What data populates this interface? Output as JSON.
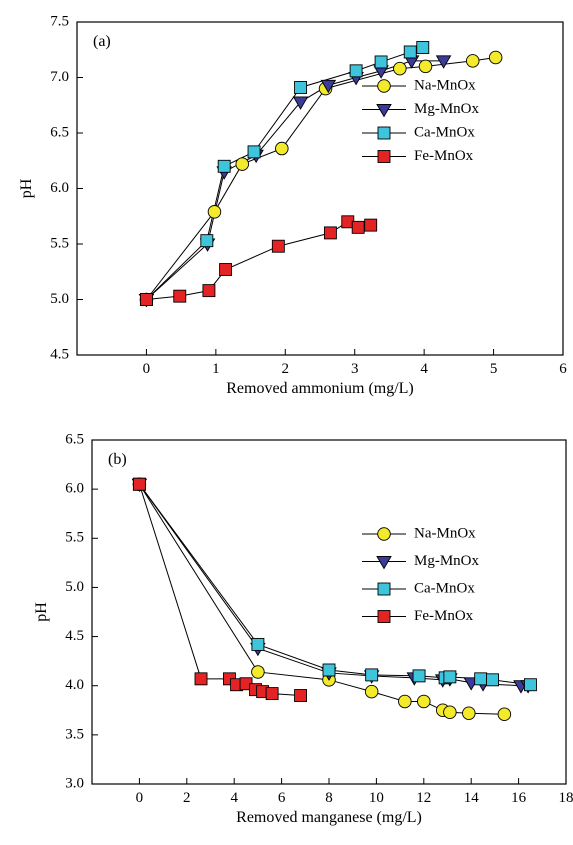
{
  "chart_data": [
    {
      "type": "scatter",
      "panel_label": "(a)",
      "xlabel": "Removed ammonium (mg/L)",
      "ylabel": "pH",
      "xlim": [
        -1,
        6
      ],
      "ylim": [
        4.5,
        7.5
      ],
      "xticks": [
        0,
        1,
        2,
        3,
        4,
        5,
        6
      ],
      "yticks": [
        4.5,
        5.0,
        5.5,
        6.0,
        6.5,
        7.0,
        7.5
      ],
      "grid": false,
      "legend_position": "right",
      "series": [
        {
          "name": "Na-MnOx",
          "marker": "circle",
          "color": "#f2ea2a",
          "x": [
            0,
            0.98,
            1.38,
            1.95,
            2.58,
            3.65,
            4.02,
            4.7,
            5.03
          ],
          "y": [
            5.0,
            5.79,
            6.22,
            6.36,
            6.9,
            7.08,
            7.1,
            7.15,
            7.18
          ]
        },
        {
          "name": "Mg-MnOx",
          "marker": "triangle-down",
          "color": "#3b3b9a",
          "x": [
            0,
            0.88,
            1.12,
            1.58,
            2.22,
            2.62,
            3.02,
            3.38,
            3.82,
            4.28
          ],
          "y": [
            5.0,
            5.5,
            6.15,
            6.3,
            6.78,
            6.93,
            7.0,
            7.06,
            7.15,
            7.15
          ]
        },
        {
          "name": "Ca-MnOx",
          "marker": "square",
          "color": "#3ec5dc",
          "x": [
            0,
            0.87,
            1.12,
            1.55,
            2.22,
            3.02,
            3.38,
            3.8,
            3.98
          ],
          "y": [
            5.0,
            5.53,
            6.2,
            6.33,
            6.91,
            7.06,
            7.14,
            7.23,
            7.27
          ]
        },
        {
          "name": "Fe-MnOx",
          "marker": "square",
          "color": "#e42424",
          "x": [
            0,
            0.48,
            0.9,
            1.14,
            1.9,
            2.65,
            2.9,
            3.05,
            3.23
          ],
          "y": [
            5.0,
            5.03,
            5.08,
            5.27,
            5.48,
            5.6,
            5.7,
            5.65,
            5.67
          ]
        }
      ]
    },
    {
      "type": "scatter",
      "panel_label": "(b)",
      "xlabel": "Removed manganese (mg/L)",
      "ylabel": "pH",
      "xlim": [
        -2,
        18
      ],
      "ylim": [
        3.0,
        6.5
      ],
      "xticks": [
        0,
        2,
        4,
        6,
        8,
        10,
        12,
        14,
        16,
        18
      ],
      "yticks": [
        3.0,
        3.5,
        4.0,
        4.5,
        5.0,
        5.5,
        6.0,
        6.5
      ],
      "grid": false,
      "legend_position": "right",
      "series": [
        {
          "name": "Na-MnOx",
          "marker": "circle",
          "color": "#f2ea2a",
          "x": [
            0,
            5.0,
            8.0,
            9.8,
            11.2,
            12.0,
            12.8,
            13.1,
            13.9,
            15.4
          ],
          "y": [
            6.05,
            4.14,
            4.06,
            3.94,
            3.84,
            3.84,
            3.75,
            3.73,
            3.72,
            3.71
          ]
        },
        {
          "name": "Mg-MnOx",
          "marker": "triangle-down",
          "color": "#3b3b9a",
          "x": [
            0,
            5.0,
            8.0,
            9.8,
            11.6,
            12.8,
            13.1,
            14.0,
            14.5,
            16.1,
            16.4
          ],
          "y": [
            6.05,
            4.38,
            4.13,
            4.1,
            4.08,
            4.06,
            4.07,
            4.03,
            4.02,
            4.0,
            4.0
          ]
        },
        {
          "name": "Ca-MnOx",
          "marker": "square",
          "color": "#3ec5dc",
          "x": [
            0,
            5.0,
            8.0,
            9.8,
            11.8,
            12.9,
            13.1,
            14.4,
            14.9,
            16.5
          ],
          "y": [
            6.05,
            4.42,
            4.16,
            4.11,
            4.1,
            4.08,
            4.09,
            4.07,
            4.06,
            4.01
          ]
        },
        {
          "name": "Fe-MnOx",
          "marker": "square",
          "color": "#e42424",
          "x": [
            0,
            2.6,
            3.8,
            4.1,
            4.5,
            4.9,
            5.2,
            5.6,
            6.8
          ],
          "y": [
            6.05,
            4.07,
            4.07,
            4.01,
            4.02,
            3.96,
            3.94,
            3.92,
            3.9
          ]
        }
      ]
    }
  ]
}
